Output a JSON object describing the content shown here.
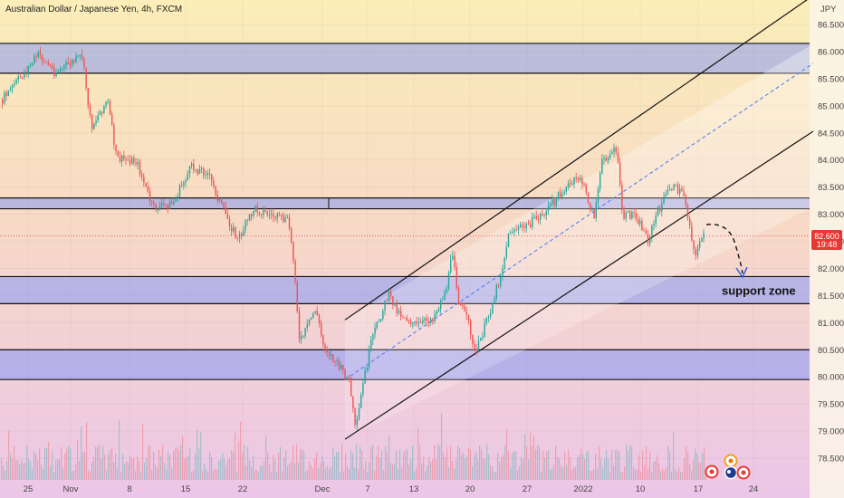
{
  "header": {
    "symbol_title": "Australian Dollar / Japanese Yen, 4h, FXCM",
    "currency": "JPY"
  },
  "chart_data": {
    "type": "candlestick",
    "ylim": [
      78.25,
      86.75
    ],
    "y_ticks": [
      "86.500",
      "86.000",
      "85.500",
      "85.000",
      "84.500",
      "84.000",
      "83.500",
      "83.000",
      "82.500",
      "82.000",
      "81.500",
      "81.000",
      "80.500",
      "80.000",
      "79.500",
      "79.000",
      "78.500"
    ],
    "x_ticks": [
      "25",
      "Nov",
      "8",
      "15",
      "22",
      "Dec",
      "7",
      "13",
      "20",
      "27",
      "2022",
      "10",
      "17",
      "24"
    ],
    "price_label": {
      "value": "82.600",
      "countdown": "19:48",
      "color": "#e53935"
    },
    "zones": [
      {
        "low": 85.6,
        "high": 86.15,
        "name": ""
      },
      {
        "low": 83.1,
        "high": 83.3,
        "name": ""
      },
      {
        "low": 81.35,
        "high": 81.85,
        "name": "support zone"
      },
      {
        "low": 79.95,
        "high": 80.5,
        "name": ""
      }
    ],
    "channel": {
      "lower": [
        78.85,
        83.1
      ],
      "upper": [
        81.05,
        86.1
      ]
    },
    "forecast_arrow": "down",
    "colors": {
      "up": "#26a69a",
      "down": "#ef5350",
      "zone": "#6e8cff",
      "channel_line": "#111111",
      "mid_line": "#4a74ff"
    }
  }
}
